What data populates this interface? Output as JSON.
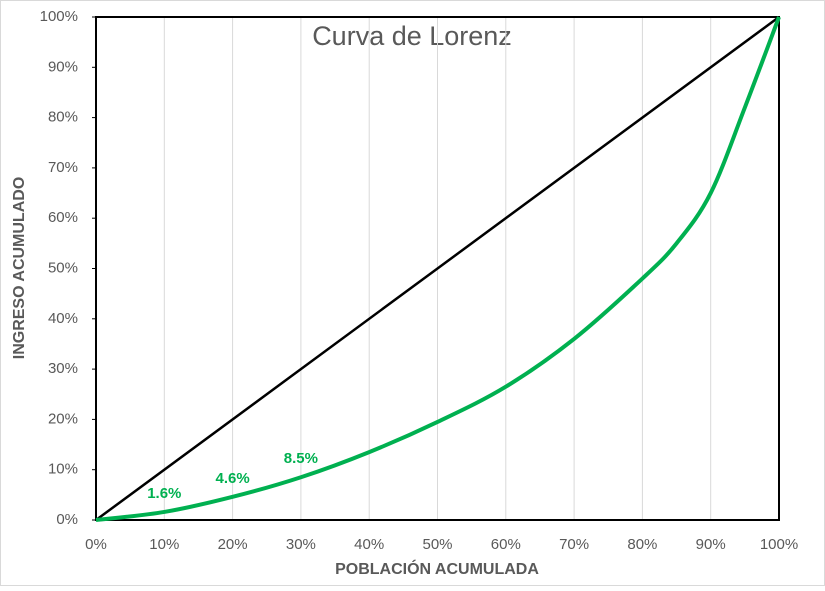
{
  "chart_data": {
    "type": "line",
    "title": "Curva de Lorenz",
    "x_label": "POBLACIÓN ACUMULADA",
    "y_label": "INGRESO ACUMULADO",
    "xlim": [
      0,
      100
    ],
    "ylim": [
      0,
      100
    ],
    "xticks": [
      {
        "value": 0,
        "label": "0%"
      },
      {
        "value": 10,
        "label": "10%"
      },
      {
        "value": 20,
        "label": "20%"
      },
      {
        "value": 30,
        "label": "30%"
      },
      {
        "value": 40,
        "label": "40%"
      },
      {
        "value": 50,
        "label": "50%"
      },
      {
        "value": 60,
        "label": "60%"
      },
      {
        "value": 70,
        "label": "70%"
      },
      {
        "value": 80,
        "label": "80%"
      },
      {
        "value": 90,
        "label": "90%"
      },
      {
        "value": 100,
        "label": "100%"
      }
    ],
    "yticks": [
      {
        "value": 0,
        "label": "0%"
      },
      {
        "value": 10,
        "label": "10%"
      },
      {
        "value": 20,
        "label": "20%"
      },
      {
        "value": 30,
        "label": "30%"
      },
      {
        "value": 40,
        "label": "40%"
      },
      {
        "value": 50,
        "label": "50%"
      },
      {
        "value": 60,
        "label": "60%"
      },
      {
        "value": 70,
        "label": "70%"
      },
      {
        "value": 80,
        "label": "80%"
      },
      {
        "value": 90,
        "label": "90%"
      },
      {
        "value": 100,
        "label": "100%"
      }
    ],
    "grid": true,
    "series": [
      {
        "color": "#000000",
        "x": [
          0,
          100
        ],
        "values": [
          0,
          100
        ]
      },
      {
        "color": "#00b050",
        "x": [
          0,
          10,
          20,
          30,
          40,
          50,
          60,
          70,
          80,
          85,
          90,
          95,
          100
        ],
        "values": [
          0,
          1.6,
          4.6,
          8.5,
          13.5,
          19.5,
          26.5,
          36,
          48,
          55,
          65,
          82,
          100
        ],
        "value_labels": [
          null,
          "1.6%",
          "4.6%",
          "8.5%",
          null,
          null,
          null,
          null,
          null,
          null,
          null,
          null,
          null
        ]
      }
    ]
  }
}
